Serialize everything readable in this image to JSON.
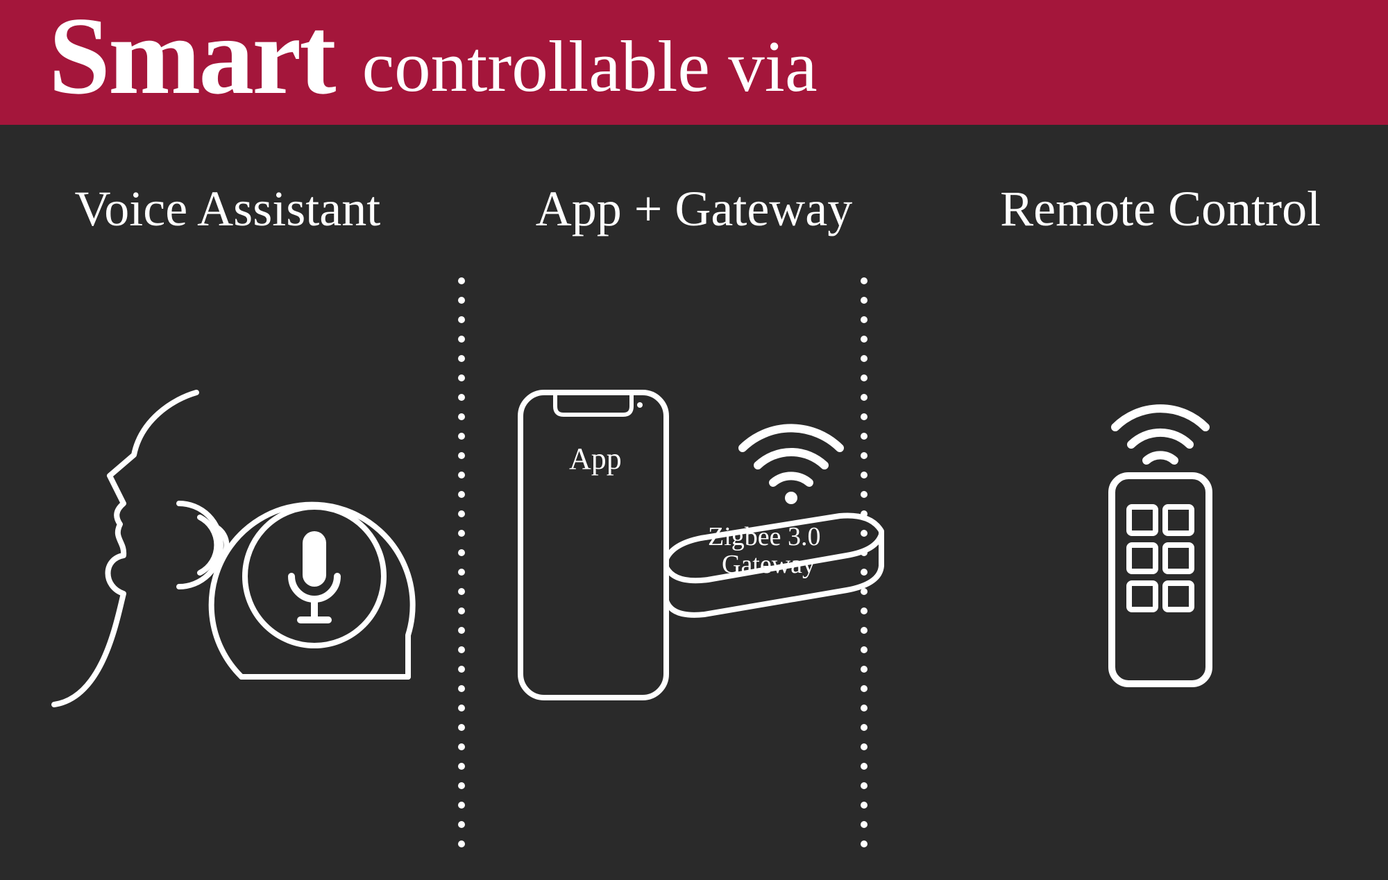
{
  "colors": {
    "header_bg": "#a4163b",
    "body_bg": "#2a2a2a",
    "text": "#ffffff",
    "stroke": "#ffffff"
  },
  "header": {
    "bold": "Smart",
    "light": "controllable via",
    "bold_fontsize": 160,
    "light_fontsize": 105
  },
  "columns": [
    {
      "title": "Voice Assistant"
    },
    {
      "title": "App + Gateway"
    },
    {
      "title": "Remote Control"
    }
  ],
  "labels": {
    "app": "App",
    "gateway_line1": "Zigbee 3.0",
    "gateway_line2": "Gateway"
  },
  "divider": {
    "dot_radius": 5,
    "dot_gap": 18,
    "dot_count": 30
  },
  "stroke_width": 8
}
